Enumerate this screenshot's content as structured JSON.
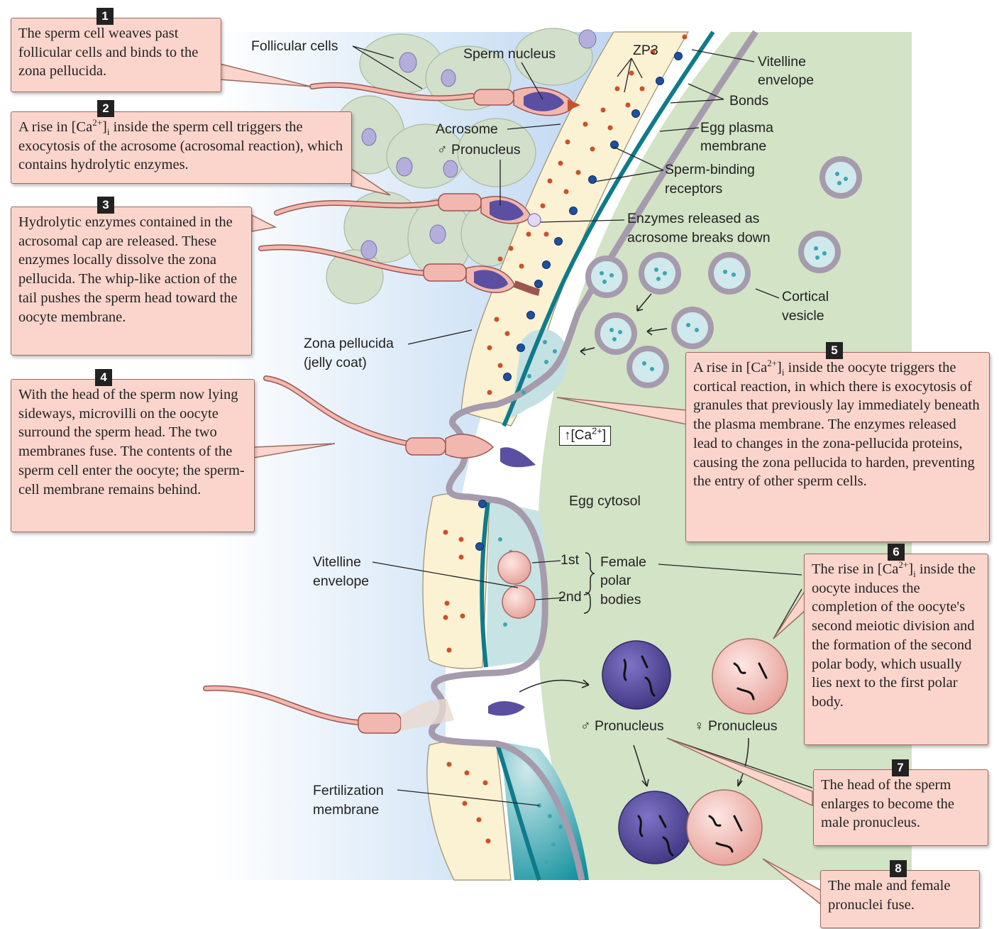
{
  "steps": [
    {
      "num": "1",
      "pre": "The sperm cell weaves past follicular cells and binds to the zona pellucida."
    },
    {
      "num": "2",
      "pre": "A rise in [Ca",
      "sup": "2+",
      "mid": "]",
      "sub": "i",
      "post": " inside the sperm cell triggers the exocytosis of the acrosome (acrosomal reaction), which contains hydrolytic enzymes."
    },
    {
      "num": "3",
      "pre": "Hydrolytic enzymes contained in the acrosomal cap are released. These enzymes locally dissolve the zona pellucida. The whip-like action of the tail pushes the sperm head toward the oocyte membrane."
    },
    {
      "num": "4",
      "pre": "With the head of the sperm now lying sideways, microvilli on the oocyte surround the sperm head. The two membranes fuse. The contents of the sperm cell enter the oocyte; the sperm-cell membrane remains behind."
    },
    {
      "num": "5",
      "pre": "A rise in [Ca",
      "sup": "2+",
      "mid": "]",
      "sub": "i",
      "post": " inside the oocyte triggers the cortical reaction, in which there is exocytosis of granules that previously lay immediately beneath the plasma membrane. The enzymes released lead to changes in the zona-pellucida proteins, causing the zona pellucida to harden, preventing the entry of other sperm cells."
    },
    {
      "num": "6",
      "pre": "The rise in [Ca",
      "sup": "2+",
      "mid": "]",
      "sub": "i",
      "post": " inside the oocyte  induces the completion of the oocyte's second meiotic division and the formation of the second polar body, which usually lies next to the first polar body."
    },
    {
      "num": "7",
      "pre": "The head of the sperm enlarges to become the male pronucleus."
    },
    {
      "num": "8",
      "pre": "The male and female pronuclei fuse."
    }
  ],
  "labels": {
    "follicular_cells": "Follicular cells",
    "sperm_nucleus": "Sperm nucleus",
    "zp3": "ZP3",
    "vitelline_envelope_1a": "Vitelline",
    "vitelline_envelope_1b": "envelope",
    "bonds": "Bonds",
    "egg_plasma_membrane_a": "Egg plasma",
    "egg_plasma_membrane_b": "membrane",
    "acrosome": "Acrosome",
    "male_pronucleus_top": "♂ Pronucleus",
    "sperm_binding_a": "Sperm-binding",
    "sperm_binding_b": "receptors",
    "enzymes_a": "Enzymes released as",
    "enzymes_b": "acrosome breaks down",
    "cortical_a": "Cortical",
    "cortical_b": "vesicle",
    "zona_a": "Zona pellucida",
    "zona_b": "(jelly coat)",
    "ca_marker": "↑[Ca",
    "ca_sup": "2+",
    "ca_close": "]",
    "egg_cytosol": "Egg cytosol",
    "vitelline_envelope_2a": "Vitelline",
    "vitelline_envelope_2b": "envelope",
    "first": "1st",
    "second": "2nd",
    "female_polar_a": "Female",
    "female_polar_b": "polar",
    "female_polar_c": "bodies",
    "male_pronucleus": "♂ Pronucleus",
    "female_pronucleus": "♀ Pronucleus",
    "fert_a": "Fertilization",
    "fert_b": "membrane"
  },
  "colors": {
    "callout_fill": "#fbd5cc",
    "zona": "#fbf1d3",
    "cytosol": "#d3e3c6",
    "vitelline": "#0f7b8a",
    "membrane": "#a59bad",
    "male_pronucleus": "#5b4fa2",
    "female_pronucleus": "#e9a7a2"
  }
}
